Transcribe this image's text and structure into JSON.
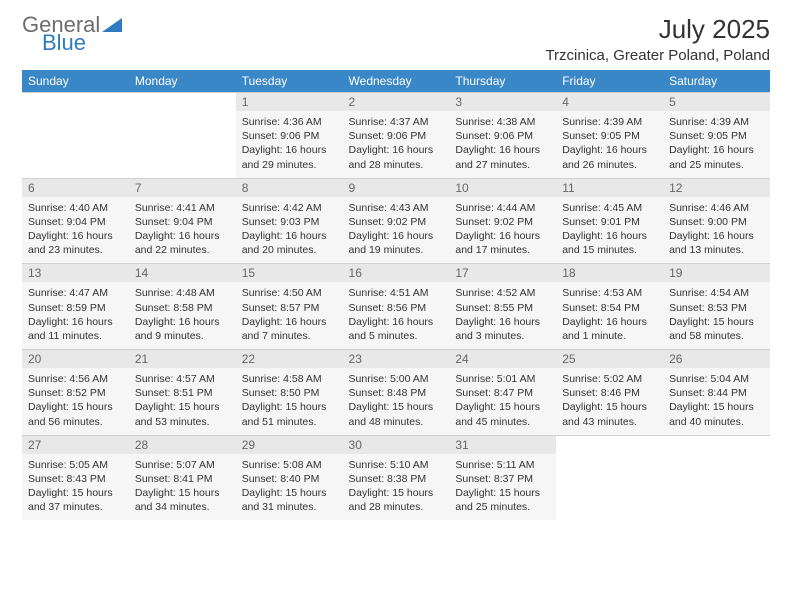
{
  "brand": {
    "part1": "General",
    "part2": "Blue"
  },
  "title": "July 2025",
  "location": "Trzcinica, Greater Poland, Poland",
  "colors": {
    "header_bg": "#3a87c8",
    "header_text": "#ffffff",
    "daynum_bg": "#e8e8e8",
    "cell_bg": "#f6f6f6",
    "brand_gray": "#6d6d6d",
    "brand_blue": "#2f7bbf"
  },
  "day_headers": [
    "Sunday",
    "Monday",
    "Tuesday",
    "Wednesday",
    "Thursday",
    "Friday",
    "Saturday"
  ],
  "weeks": [
    [
      null,
      null,
      {
        "n": "1",
        "sr": "4:36 AM",
        "ss": "9:06 PM",
        "dl": "16 hours and 29 minutes."
      },
      {
        "n": "2",
        "sr": "4:37 AM",
        "ss": "9:06 PM",
        "dl": "16 hours and 28 minutes."
      },
      {
        "n": "3",
        "sr": "4:38 AM",
        "ss": "9:06 PM",
        "dl": "16 hours and 27 minutes."
      },
      {
        "n": "4",
        "sr": "4:39 AM",
        "ss": "9:05 PM",
        "dl": "16 hours and 26 minutes."
      },
      {
        "n": "5",
        "sr": "4:39 AM",
        "ss": "9:05 PM",
        "dl": "16 hours and 25 minutes."
      }
    ],
    [
      {
        "n": "6",
        "sr": "4:40 AM",
        "ss": "9:04 PM",
        "dl": "16 hours and 23 minutes."
      },
      {
        "n": "7",
        "sr": "4:41 AM",
        "ss": "9:04 PM",
        "dl": "16 hours and 22 minutes."
      },
      {
        "n": "8",
        "sr": "4:42 AM",
        "ss": "9:03 PM",
        "dl": "16 hours and 20 minutes."
      },
      {
        "n": "9",
        "sr": "4:43 AM",
        "ss": "9:02 PM",
        "dl": "16 hours and 19 minutes."
      },
      {
        "n": "10",
        "sr": "4:44 AM",
        "ss": "9:02 PM",
        "dl": "16 hours and 17 minutes."
      },
      {
        "n": "11",
        "sr": "4:45 AM",
        "ss": "9:01 PM",
        "dl": "16 hours and 15 minutes."
      },
      {
        "n": "12",
        "sr": "4:46 AM",
        "ss": "9:00 PM",
        "dl": "16 hours and 13 minutes."
      }
    ],
    [
      {
        "n": "13",
        "sr": "4:47 AM",
        "ss": "8:59 PM",
        "dl": "16 hours and 11 minutes."
      },
      {
        "n": "14",
        "sr": "4:48 AM",
        "ss": "8:58 PM",
        "dl": "16 hours and 9 minutes."
      },
      {
        "n": "15",
        "sr": "4:50 AM",
        "ss": "8:57 PM",
        "dl": "16 hours and 7 minutes."
      },
      {
        "n": "16",
        "sr": "4:51 AM",
        "ss": "8:56 PM",
        "dl": "16 hours and 5 minutes."
      },
      {
        "n": "17",
        "sr": "4:52 AM",
        "ss": "8:55 PM",
        "dl": "16 hours and 3 minutes."
      },
      {
        "n": "18",
        "sr": "4:53 AM",
        "ss": "8:54 PM",
        "dl": "16 hours and 1 minute."
      },
      {
        "n": "19",
        "sr": "4:54 AM",
        "ss": "8:53 PM",
        "dl": "15 hours and 58 minutes."
      }
    ],
    [
      {
        "n": "20",
        "sr": "4:56 AM",
        "ss": "8:52 PM",
        "dl": "15 hours and 56 minutes."
      },
      {
        "n": "21",
        "sr": "4:57 AM",
        "ss": "8:51 PM",
        "dl": "15 hours and 53 minutes."
      },
      {
        "n": "22",
        "sr": "4:58 AM",
        "ss": "8:50 PM",
        "dl": "15 hours and 51 minutes."
      },
      {
        "n": "23",
        "sr": "5:00 AM",
        "ss": "8:48 PM",
        "dl": "15 hours and 48 minutes."
      },
      {
        "n": "24",
        "sr": "5:01 AM",
        "ss": "8:47 PM",
        "dl": "15 hours and 45 minutes."
      },
      {
        "n": "25",
        "sr": "5:02 AM",
        "ss": "8:46 PM",
        "dl": "15 hours and 43 minutes."
      },
      {
        "n": "26",
        "sr": "5:04 AM",
        "ss": "8:44 PM",
        "dl": "15 hours and 40 minutes."
      }
    ],
    [
      {
        "n": "27",
        "sr": "5:05 AM",
        "ss": "8:43 PM",
        "dl": "15 hours and 37 minutes."
      },
      {
        "n": "28",
        "sr": "5:07 AM",
        "ss": "8:41 PM",
        "dl": "15 hours and 34 minutes."
      },
      {
        "n": "29",
        "sr": "5:08 AM",
        "ss": "8:40 PM",
        "dl": "15 hours and 31 minutes."
      },
      {
        "n": "30",
        "sr": "5:10 AM",
        "ss": "8:38 PM",
        "dl": "15 hours and 28 minutes."
      },
      {
        "n": "31",
        "sr": "5:11 AM",
        "ss": "8:37 PM",
        "dl": "15 hours and 25 minutes."
      },
      null,
      null
    ]
  ],
  "labels": {
    "sunrise": "Sunrise: ",
    "sunset": "Sunset: ",
    "daylight": "Daylight: "
  }
}
